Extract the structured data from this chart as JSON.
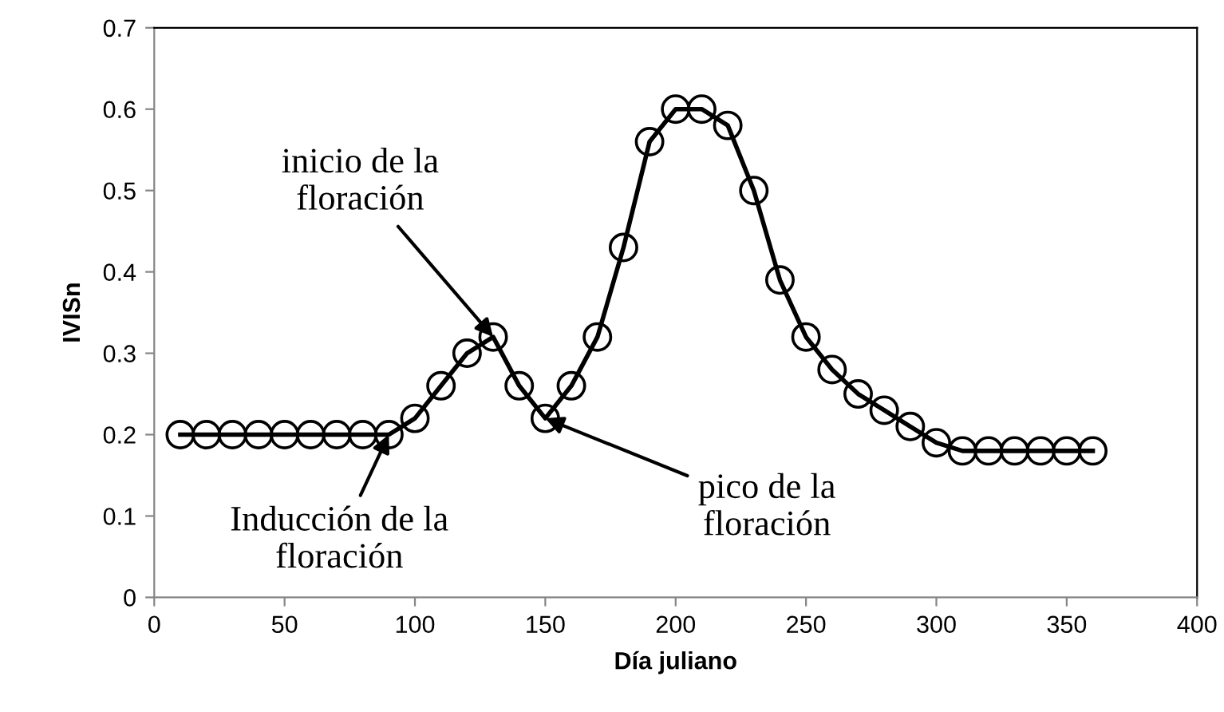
{
  "chart_data": {
    "type": "line",
    "xlabel": "Día juliano",
    "ylabel": "IVISn",
    "x": [
      10,
      20,
      30,
      40,
      50,
      60,
      70,
      80,
      90,
      100,
      110,
      120,
      130,
      140,
      150,
      160,
      170,
      180,
      190,
      200,
      210,
      220,
      230,
      240,
      250,
      260,
      270,
      280,
      290,
      300,
      310,
      320,
      330,
      340,
      350,
      360
    ],
    "series": [
      {
        "color": "#000000",
        "values": [
          0.2,
          0.2,
          0.2,
          0.2,
          0.2,
          0.2,
          0.2,
          0.2,
          0.2,
          0.22,
          0.26,
          0.3,
          0.32,
          0.26,
          0.22,
          0.26,
          0.32,
          0.43,
          0.56,
          0.6,
          0.6,
          0.58,
          0.5,
          0.39,
          0.32,
          0.28,
          0.25,
          0.23,
          0.21,
          0.19,
          0.18,
          0.18,
          0.18,
          0.18,
          0.18,
          0.18
        ]
      }
    ],
    "marker": "circle",
    "line_style": "solid",
    "grid": false,
    "legend": false,
    "xlim": [
      0,
      400
    ],
    "xticks": [
      0,
      50,
      100,
      150,
      200,
      250,
      300,
      350,
      400
    ],
    "ylim": [
      0,
      0.7
    ],
    "yticks": [
      0,
      0.1,
      0.2,
      0.3,
      0.4,
      0.5,
      0.6,
      0.7
    ],
    "annotations": [
      {
        "text": "inicio de la\nfloración",
        "x": 130,
        "y": 0.32
      },
      {
        "text": "Inducción de la\nfloración",
        "x": 90,
        "y": 0.2
      },
      {
        "text": "pico de la\nfloración",
        "x": 150,
        "y": 0.22
      }
    ]
  }
}
